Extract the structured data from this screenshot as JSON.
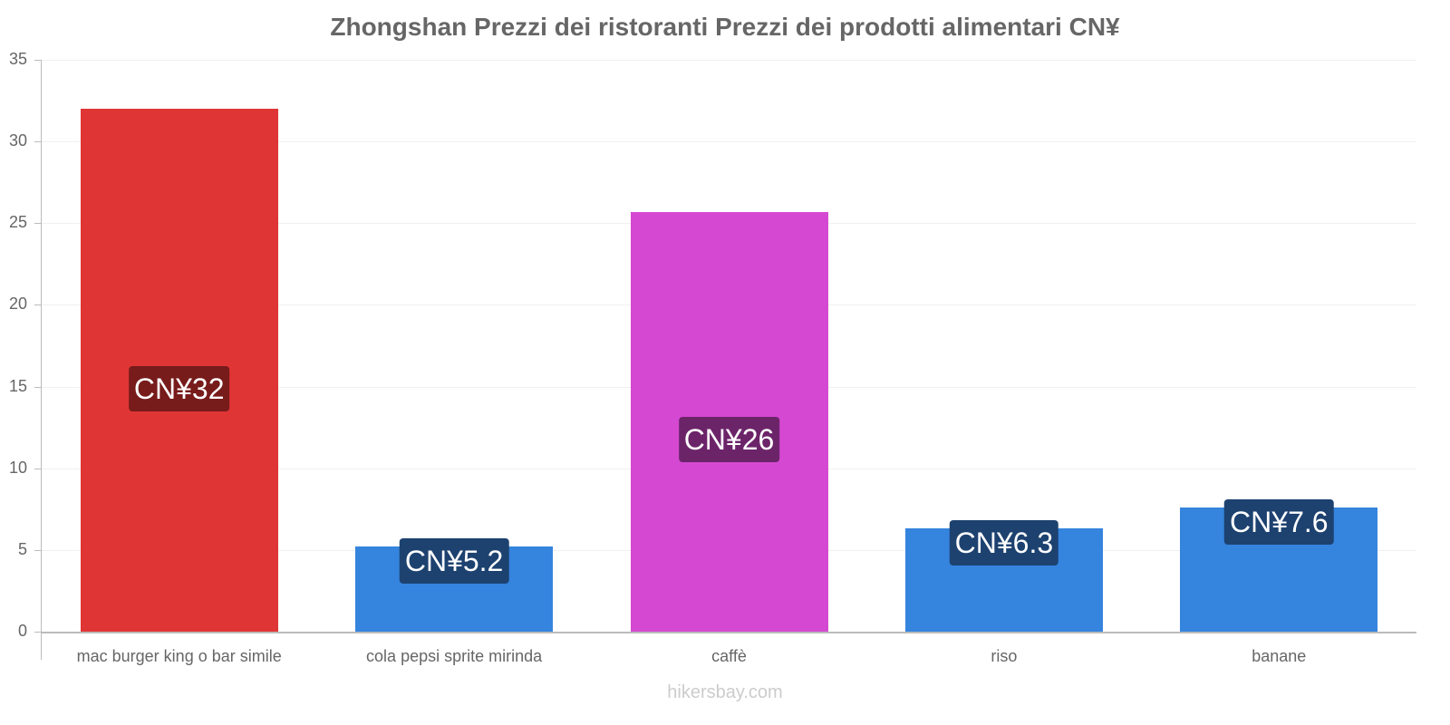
{
  "chart_data": {
    "type": "bar",
    "title": "Zhongshan Prezzi dei ristoranti Prezzi dei prodotti alimentari CN¥",
    "xlabel": "",
    "ylabel": "",
    "ylim": [
      0,
      35
    ],
    "yticks": [
      0,
      5,
      10,
      15,
      20,
      25,
      30,
      35
    ],
    "grid": true,
    "legend": "none",
    "categories": [
      "mac burger king o bar simile",
      "cola pepsi sprite mirinda",
      "caffè",
      "riso",
      "banane"
    ],
    "values": [
      32,
      5.2,
      25.7,
      6.3,
      7.6
    ],
    "data_labels": [
      "CN¥32",
      "CN¥5.2",
      "CN¥26",
      "CN¥6.3",
      "CN¥7.6"
    ],
    "bar_colors": [
      "#e03535",
      "#3584dd",
      "#d549d2",
      "#3584dd",
      "#3584dd"
    ],
    "label_bg_colors": [
      "#771b1b",
      "#1d4270",
      "#6c2469",
      "#1d4270",
      "#1d4270"
    ]
  },
  "watermark": "hikersbay.com"
}
